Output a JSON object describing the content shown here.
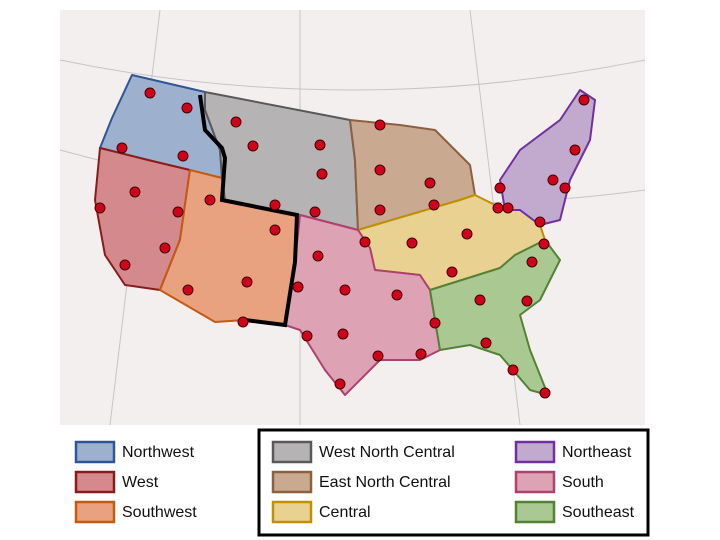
{
  "legend": [
    {
      "label": "Northwest",
      "fill": "#9db1cf",
      "stroke": "#2f5597"
    },
    {
      "label": "West",
      "fill": "#d48a8c",
      "stroke": "#8b1a1a"
    },
    {
      "label": "Southwest",
      "fill": "#e9a27f",
      "stroke": "#c55a11"
    },
    {
      "label": "West North Central",
      "fill": "#b5b3b3",
      "stroke": "#595959"
    },
    {
      "label": "East North Central",
      "fill": "#caa991",
      "stroke": "#8c6040"
    },
    {
      "label": "Central",
      "fill": "#e9d291",
      "stroke": "#bf9000"
    },
    {
      "label": "Northeast",
      "fill": "#c2aace",
      "stroke": "#7030a0"
    },
    {
      "label": "South",
      "fill": "#dda2b4",
      "stroke": "#b04070"
    },
    {
      "label": "Southeast",
      "fill": "#aac992",
      "stroke": "#548235"
    }
  ]
}
